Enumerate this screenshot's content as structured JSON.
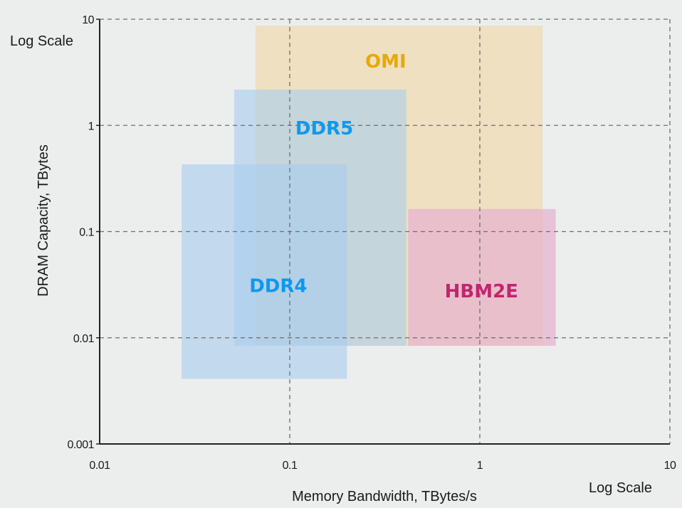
{
  "chart_data": {
    "type": "area",
    "subtype": "range-rectangles",
    "title": "",
    "xlabel": "Memory Bandwidth, TBytes/s",
    "ylabel": "DRAM Capacity, TBytes",
    "x_scale": "log",
    "y_scale": "log",
    "xlim": [
      0.01,
      10
    ],
    "ylim": [
      0.001,
      10
    ],
    "x_ticks": [
      "0.01",
      "0.1",
      "1",
      "10"
    ],
    "y_ticks": [
      "0.001",
      "0.01",
      "0.1",
      "1",
      "10"
    ],
    "x_scale_note": "Log Scale",
    "y_scale_note": "Log Scale",
    "grid": true,
    "series": [
      {
        "name": "OMI",
        "x_range": [
          0.066,
          2.14
        ],
        "y_range": [
          0.0084,
          8.7
        ],
        "fill": "#f0d9a8",
        "opacity": 0.65,
        "label_color": "#e8a900"
      },
      {
        "name": "DDR5",
        "x_range": [
          0.051,
          0.41
        ],
        "y_range": [
          0.0084,
          2.17
        ],
        "fill": "#a9cdee",
        "opacity": 0.6,
        "label_color": "#0f98ee"
      },
      {
        "name": "DDR4",
        "x_range": [
          0.027,
          0.2
        ],
        "y_range": [
          0.0041,
          0.43
        ],
        "fill": "#a9cdee",
        "opacity": 0.6,
        "label_color": "#0f98ee"
      },
      {
        "name": "HBM2E",
        "x_range": [
          0.42,
          2.51
        ],
        "y_range": [
          0.0084,
          0.163
        ],
        "fill": "#e6b0cf",
        "opacity": 0.7,
        "label_color": "#c2256e"
      }
    ]
  }
}
